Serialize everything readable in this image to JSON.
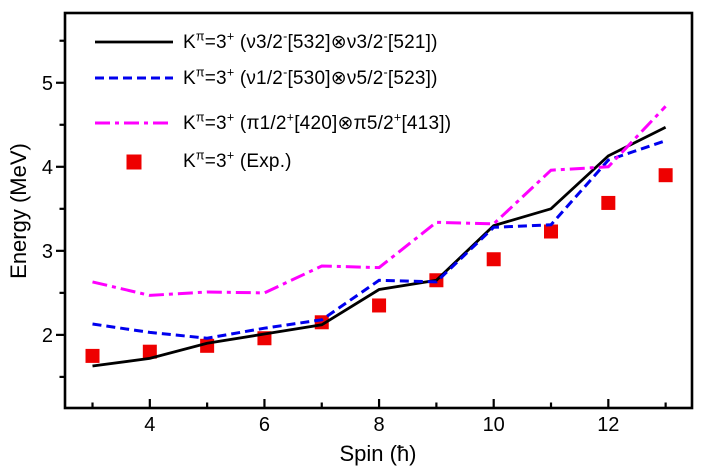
{
  "figure": {
    "background": "#ffffff",
    "text_color": "#000000"
  },
  "chart_data": {
    "type": "line",
    "title": "",
    "xlabel": "Spin (ħ)",
    "ylabel": "Energy (MeV)",
    "grid": false,
    "legend_position": "top-left",
    "xlim": [
      2.52,
      13.46
    ],
    "ylim": [
      1.13,
      5.83
    ],
    "x_major_ticks": [
      4,
      6,
      8,
      10,
      12
    ],
    "x_minor_ticks": [
      3,
      5,
      7,
      9,
      11,
      13
    ],
    "y_major_ticks": [
      2,
      3,
      4,
      5
    ],
    "y_minor_ticks": [
      1.5,
      2.5,
      3.5,
      4.5,
      5.5
    ],
    "x": [
      3,
      4,
      5,
      6,
      7,
      8,
      9,
      10,
      11,
      12,
      13
    ],
    "series": [
      {
        "name": "K^{π}=3^{+} (ν3/2^{-}[532]⊗ν3/2^{-}[521])",
        "type": "line",
        "style": "solid",
        "color": "#000000",
        "width": 2.8,
        "values": [
          1.63,
          1.72,
          1.9,
          2.01,
          2.12,
          2.54,
          2.65,
          3.3,
          3.5,
          4.13,
          4.47
        ]
      },
      {
        "name": "K^{π}=3^{+} (ν1/2^{-}[530]⊗ν5/2^{-}[523])",
        "type": "line",
        "style": "dashed",
        "color": "#0000ee",
        "width": 3,
        "values": [
          2.13,
          2.03,
          1.96,
          2.08,
          2.18,
          2.65,
          2.63,
          3.28,
          3.31,
          4.08,
          4.31
        ]
      },
      {
        "name": "K^{π}=3^{+} (π1/2^{+}[420]⊗π5/2^{+}[413])",
        "type": "line",
        "style": "dashdot",
        "color": "#ff00ff",
        "width": 3,
        "values": [
          2.63,
          2.47,
          2.51,
          2.5,
          2.82,
          2.8,
          3.34,
          3.32,
          3.96,
          4.0,
          4.72
        ]
      },
      {
        "name": "K^{π}=3^{+} (Exp.)",
        "type": "scatter",
        "marker": "square",
        "color": "#ee0000",
        "size": 14,
        "values": [
          1.75,
          1.8,
          1.87,
          1.96,
          2.15,
          2.35,
          2.65,
          2.9,
          3.23,
          3.57,
          3.9
        ]
      }
    ]
  }
}
